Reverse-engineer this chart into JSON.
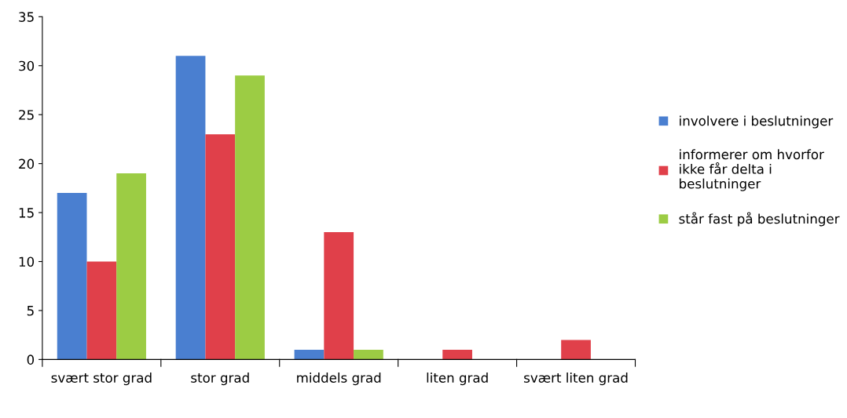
{
  "chart_data": {
    "type": "bar",
    "categories": [
      "svært stor grad",
      "stor grad",
      "middels grad",
      "liten grad",
      "svært liten grad"
    ],
    "series": [
      {
        "name": "involvere i beslutninger",
        "color": "#4a7fd0",
        "values": [
          17,
          31,
          1,
          0,
          0
        ]
      },
      {
        "name": "informerer om hvorfor\nikke får delta i\nbeslutninger",
        "color": "#e0404a",
        "values": [
          10,
          23,
          13,
          1,
          2
        ]
      },
      {
        "name": "står fast på beslutninger",
        "color": "#9ccc44",
        "values": [
          19,
          29,
          1,
          0,
          0
        ]
      }
    ],
    "ylim": [
      0,
      35
    ],
    "yticks": [
      0,
      5,
      10,
      15,
      20,
      25,
      30,
      35
    ],
    "grid": false,
    "legend": "right"
  }
}
